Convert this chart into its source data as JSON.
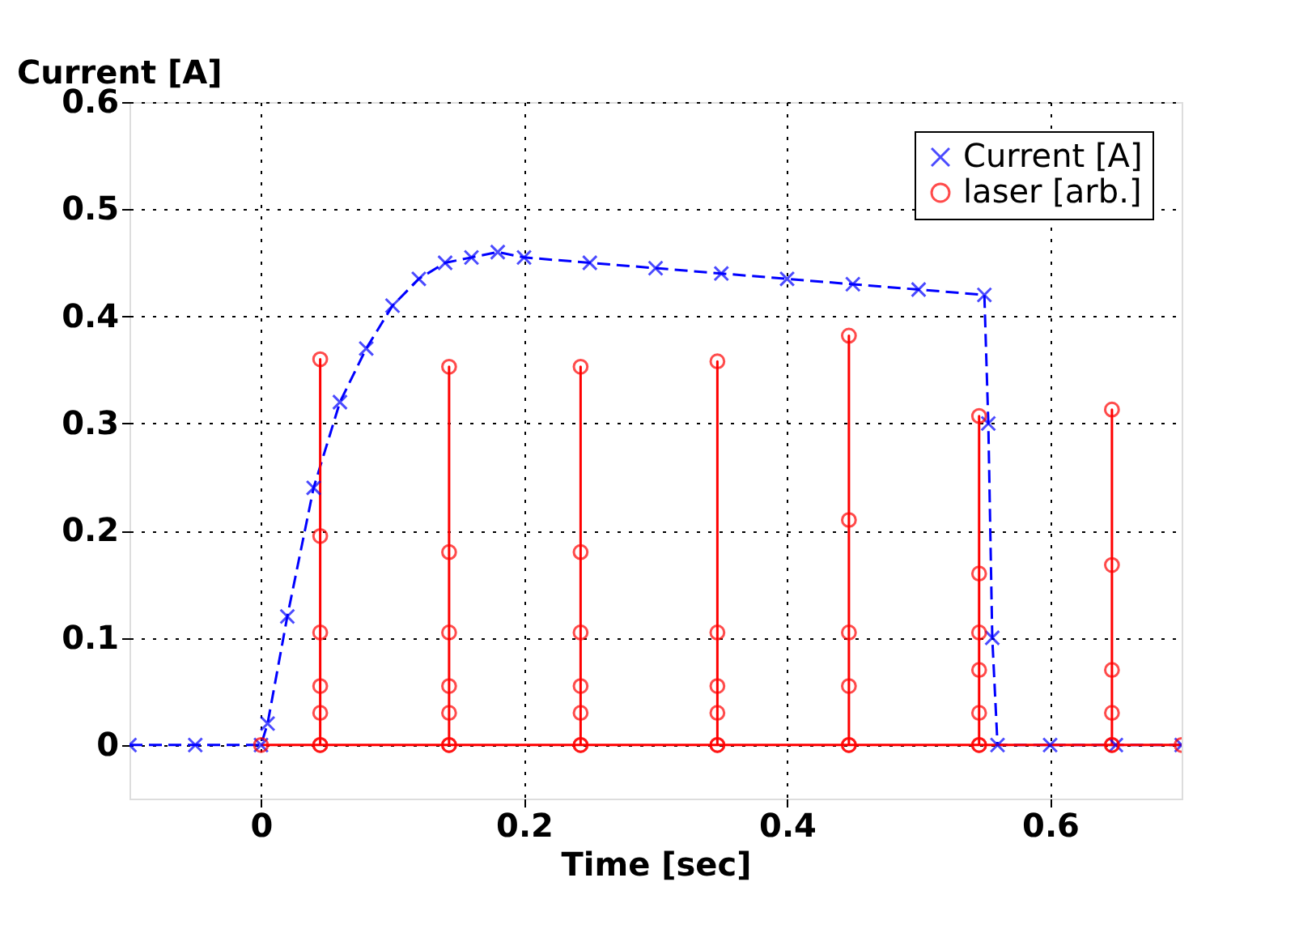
{
  "chart_data": {
    "type": "line",
    "xlabel": "Time [sec]",
    "ylabel": "Current [A]",
    "xlim": [
      -0.1,
      0.7
    ],
    "xticks": [
      0,
      0.2,
      0.4,
      0.6
    ],
    "ylim": [
      -0.05,
      0.6
    ],
    "yticks": [
      0,
      0.1,
      0.2,
      0.3,
      0.4,
      0.5,
      0.6
    ],
    "grid": true,
    "legend": "top right",
    "series": [
      {
        "name": "Current [A]",
        "color": "#0000ff",
        "marker": "cross",
        "line_style": "dashed",
        "x": [
          -0.1,
          -0.05,
          0,
          0.005,
          0.02,
          0.04,
          0.06,
          0.08,
          0.1,
          0.12,
          0.14,
          0.16,
          0.18,
          0.2,
          0.25,
          0.3,
          0.35,
          0.4,
          0.45,
          0.5,
          0.55,
          0.553,
          0.556,
          0.56,
          0.6,
          0.65,
          0.7
        ],
        "values": [
          0,
          0,
          0,
          0.02,
          0.12,
          0.24,
          0.32,
          0.37,
          0.41,
          0.435,
          0.45,
          0.455,
          0.46,
          0.455,
          0.45,
          0.445,
          0.44,
          0.435,
          0.43,
          0.425,
          0.42,
          0.3,
          0.1,
          0,
          0,
          0,
          0
        ]
      },
      {
        "name": "laser [arb.]",
        "color": "#ff0000",
        "marker": "circle",
        "line_style": "solid",
        "x": [
          0,
          0.045,
          0.045,
          0.045,
          0.045,
          0.045,
          0.045,
          0.045,
          0.143,
          0.143,
          0.143,
          0.143,
          0.143,
          0.143,
          0.143,
          0.243,
          0.243,
          0.243,
          0.243,
          0.243,
          0.243,
          0.243,
          0.347,
          0.347,
          0.347,
          0.347,
          0.347,
          0.347,
          0.447,
          0.447,
          0.447,
          0.447,
          0.447,
          0.447,
          0.546,
          0.546,
          0.546,
          0.546,
          0.546,
          0.546,
          0.546,
          0.647,
          0.647,
          0.647,
          0.647,
          0.647,
          0.647,
          0.7
        ],
        "values": [
          0,
          0,
          0.03,
          0.055,
          0.105,
          0.195,
          0.36,
          0,
          0,
          0.03,
          0.055,
          0.105,
          0.18,
          0.353,
          0,
          0,
          0.03,
          0.055,
          0.105,
          0.18,
          0.353,
          0,
          0,
          0.03,
          0.055,
          0.105,
          0.358,
          0,
          0,
          0.055,
          0.105,
          0.21,
          0.382,
          0,
          0,
          0.03,
          0.07,
          0.105,
          0.16,
          0.307,
          0,
          0,
          0.03,
          0.07,
          0.168,
          0.313,
          0,
          0
        ]
      }
    ]
  }
}
